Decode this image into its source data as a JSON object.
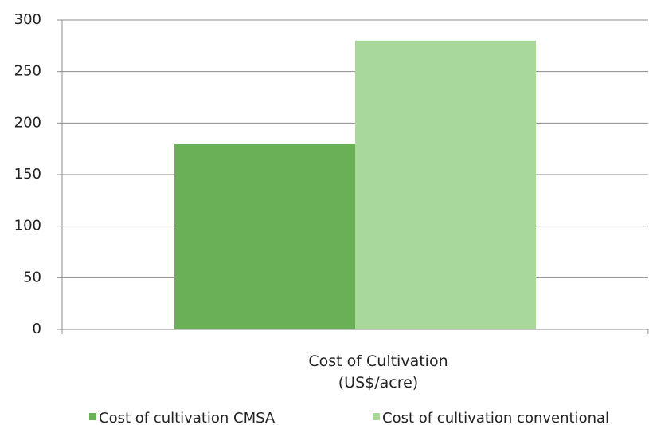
{
  "chart_data": {
    "type": "bar",
    "categories": [
      "Cost of Cultivation\n(US$/acre)"
    ],
    "series": [
      {
        "name": "Cost of cultivation CMSA",
        "color": "#6ab056",
        "values": [
          180
        ]
      },
      {
        "name": "Cost of cultivation conventional",
        "color": "#a8d89a",
        "values": [
          280
        ]
      }
    ],
    "ylim": [
      0,
      300
    ],
    "yticks": [
      0,
      50,
      100,
      150,
      200,
      250,
      300
    ],
    "grid": true,
    "legend": "bottom"
  }
}
